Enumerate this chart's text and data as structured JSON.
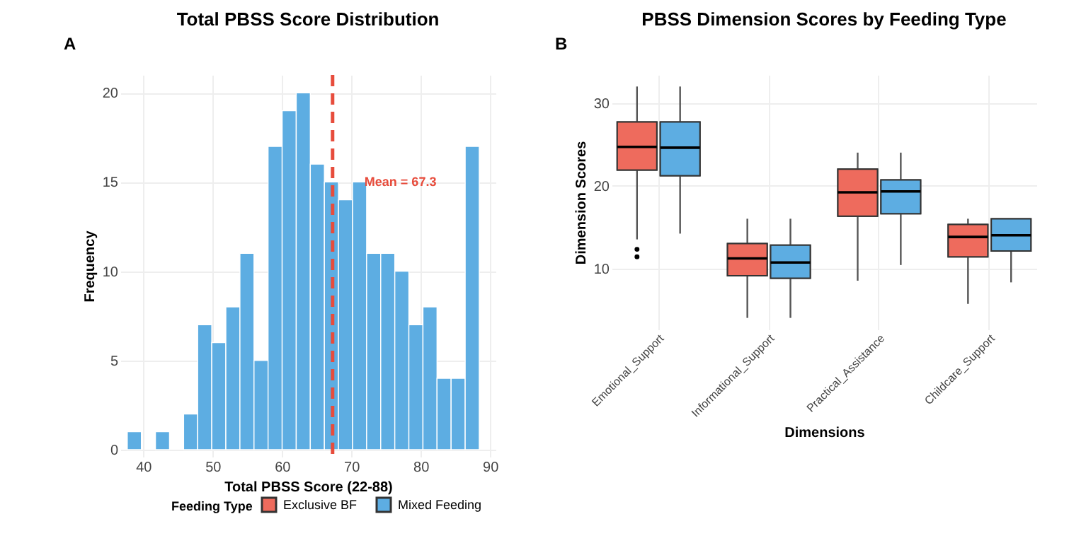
{
  "chart_data": [
    {
      "type": "histogram",
      "title": "Total PBSS Score Distribution",
      "xlabel": "Total PBSS Score (22-88)",
      "ylabel": "Frequency",
      "color": "#5dade2",
      "bins": [
        37.7,
        39.73,
        41.76,
        43.79,
        45.82,
        47.85,
        49.88,
        51.91,
        53.94,
        55.97,
        58.0,
        60.03,
        62.06,
        64.09,
        66.12,
        68.15,
        70.18,
        72.21,
        74.24,
        76.27,
        78.3,
        80.33,
        82.36,
        84.39,
        86.42,
        88.45
      ],
      "values": [
        1,
        0,
        1,
        0,
        2,
        7,
        6,
        8,
        11,
        5,
        17,
        19,
        20,
        16,
        15,
        14,
        15,
        11,
        11,
        10,
        7,
        8,
        4,
        4,
        17
      ],
      "xlim": [
        36.7,
        90.8
      ],
      "xticks": [
        40,
        50,
        60,
        70,
        80,
        90
      ],
      "ylim": [
        -0.4,
        21
      ],
      "yticks": [
        0,
        5,
        10,
        15,
        20
      ],
      "grid": true,
      "ref_lines": [
        {
          "axis": "x",
          "value": 67.3,
          "color": "#e74c3c",
          "line_style": "dashed"
        }
      ],
      "annotations": [
        "A",
        {
          "text": "Mean = 67.3",
          "x": 71.9,
          "y": 15
        }
      ]
    },
    {
      "type": "box",
      "title": "PBSS Dimension Scores by Feeding Type",
      "xlabel": "Dimensions",
      "ylabel": "Dimension Scores",
      "legend_title": "Feeding Type",
      "legend": "bottom",
      "grid": true,
      "categories": [
        "Emotional_Support",
        "Informational_Support",
        "Practical_Assistance",
        "Childcare_Support"
      ],
      "ylim": [
        2.6,
        33.4
      ],
      "yticks": [
        10,
        20,
        30
      ],
      "series": [
        {
          "name": "Exclusive BF",
          "color": "#ee6b5d",
          "boxes": [
            {
              "low": 13.5,
              "q1": 21.9,
              "median": 24.7,
              "q3": 27.7,
              "high": 32.0,
              "outliers": [
                12.3,
                11.4
              ]
            },
            {
              "low": 4.0,
              "q1": 9.1,
              "median": 11.2,
              "q3": 13.0,
              "high": 16.0
            },
            {
              "low": 8.5,
              "q1": 16.3,
              "median": 19.2,
              "q3": 22.0,
              "high": 24.0
            },
            {
              "low": 5.7,
              "q1": 11.4,
              "median": 13.8,
              "q3": 15.3,
              "high": 16.0
            }
          ]
        },
        {
          "name": "Mixed Feeding",
          "color": "#5dade2",
          "boxes": [
            {
              "low": 14.2,
              "q1": 21.2,
              "median": 24.6,
              "q3": 27.7,
              "high": 32.0
            },
            {
              "low": 4.0,
              "q1": 8.8,
              "median": 10.7,
              "q3": 12.8,
              "high": 16.0
            },
            {
              "low": 10.4,
              "q1": 16.6,
              "median": 19.3,
              "q3": 20.7,
              "high": 24.0
            },
            {
              "low": 8.3,
              "q1": 12.1,
              "median": 14.0,
              "q3": 16.0,
              "high": 16.0
            }
          ]
        }
      ],
      "annotations": [
        "B"
      ]
    }
  ]
}
